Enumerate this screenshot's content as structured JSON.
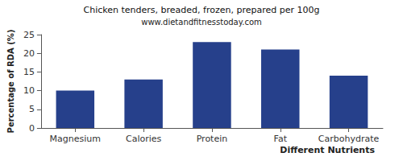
{
  "chart_data": {
    "type": "bar",
    "title": "Chicken tenders, breaded, frozen, prepared per 100g",
    "subtitle": "www.dietandfitnesstoday.com",
    "xlabel": "Different Nutrients",
    "ylabel": "Percentage of RDA (%)",
    "categories": [
      "Magnesium",
      "Calories",
      "Protein",
      "Fat",
      "Carbohydrate"
    ],
    "values": [
      10,
      13,
      23,
      21,
      14
    ],
    "color": "#26408b",
    "ylim": [
      0,
      25
    ],
    "yticks": [
      0,
      5,
      10,
      15,
      20,
      25
    ],
    "grid": false
  }
}
